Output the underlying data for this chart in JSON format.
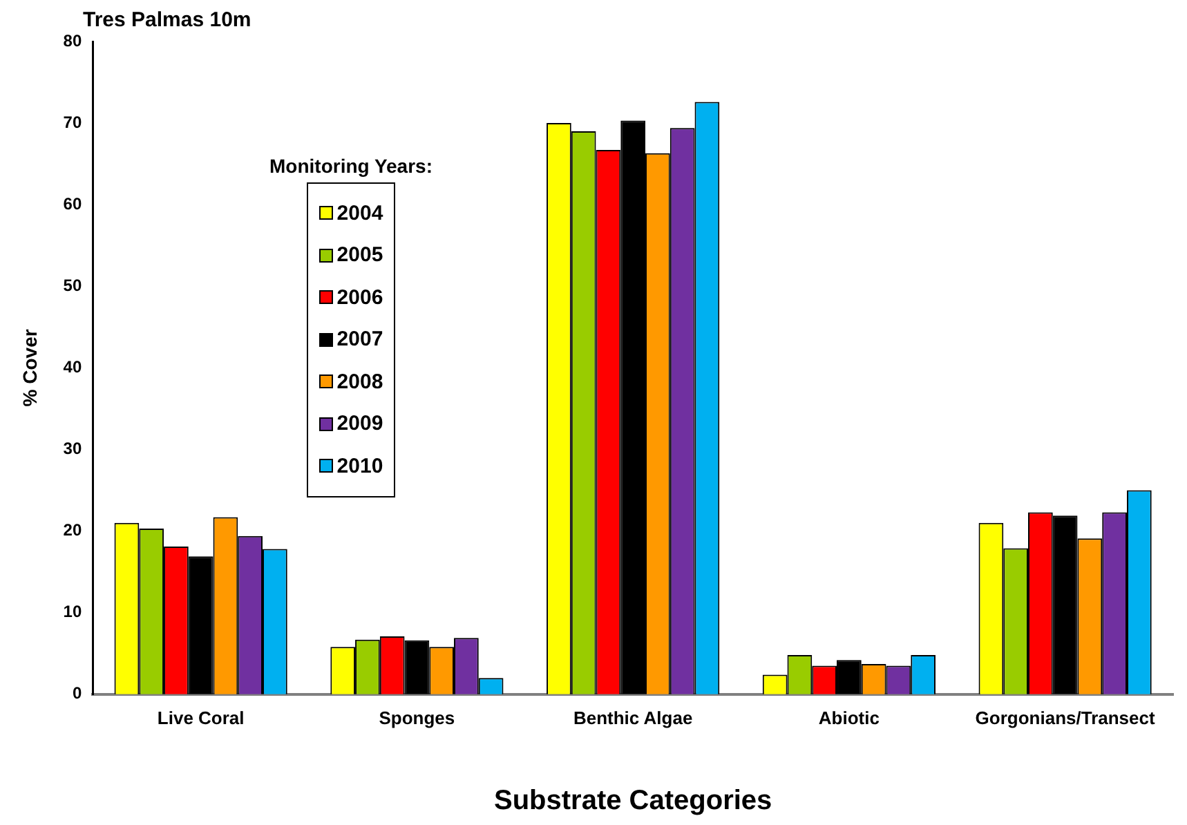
{
  "chart_data": {
    "type": "bar",
    "title": "Tres Palmas 10m",
    "xlabel": "Substrate Categories",
    "ylabel": "% Cover",
    "legend_title": "Monitoring Years:",
    "legend": "top left",
    "grid": false,
    "categories": [
      "Live Coral",
      "Sponges",
      "Benthic Algae",
      "Abiotic",
      "Gorgonians/Transect"
    ],
    "ylim": [
      0,
      80
    ],
    "yticks": [
      0,
      10,
      20,
      30,
      40,
      50,
      60,
      70,
      80
    ],
    "series": [
      {
        "name": "2004",
        "color": "#ffff00",
        "values": [
          21.0,
          5.8,
          70.0,
          2.4,
          21.0
        ]
      },
      {
        "name": "2005",
        "color": "#99cc00",
        "values": [
          20.3,
          6.7,
          69.0,
          4.8,
          17.9
        ]
      },
      {
        "name": "2006",
        "color": "#ff0000",
        "values": [
          18.1,
          7.1,
          66.7,
          3.5,
          22.3
        ]
      },
      {
        "name": "2007",
        "color": "#000000",
        "values": [
          16.9,
          6.6,
          70.3,
          4.2,
          21.9
        ]
      },
      {
        "name": "2008",
        "color": "#ff9900",
        "values": [
          21.7,
          5.8,
          66.3,
          3.7,
          19.1
        ]
      },
      {
        "name": "2009",
        "color": "#7030a0",
        "values": [
          19.4,
          6.9,
          69.4,
          3.5,
          22.3
        ]
      },
      {
        "name": "2010",
        "color": "#00b0f0",
        "values": [
          17.8,
          2.0,
          72.6,
          4.8,
          25.0
        ]
      }
    ]
  }
}
